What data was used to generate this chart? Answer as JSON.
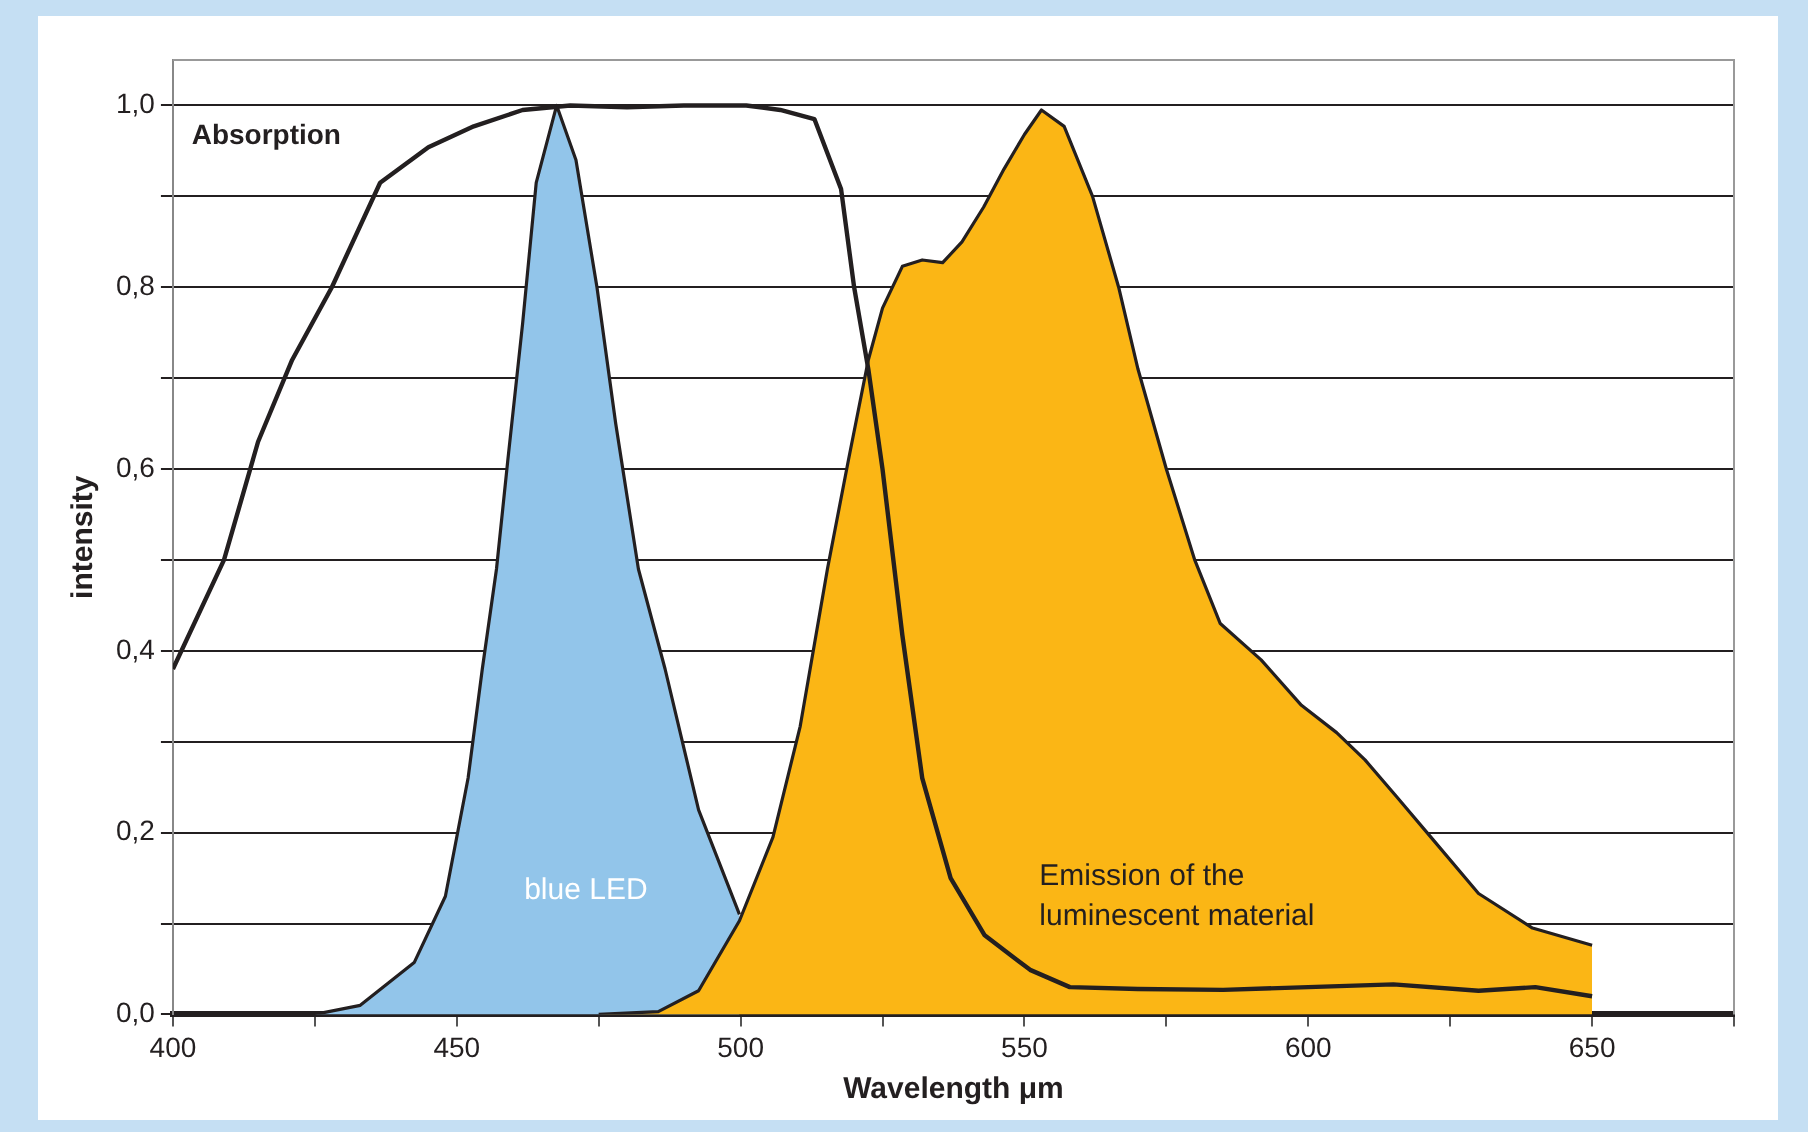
{
  "chart_data": {
    "type": "area",
    "xlabel": "Wavelength μm",
    "ylabel": "intensity",
    "xlim": [
      400,
      675
    ],
    "xticks": [
      400,
      {
        "value": 425,
        "label": null
      },
      450,
      {
        "value": 475,
        "label": null
      },
      500,
      {
        "value": 525,
        "label": null
      },
      550,
      {
        "value": 575,
        "label": null
      },
      600,
      {
        "value": 625,
        "label": null
      },
      650,
      {
        "value": 675,
        "label": null
      }
    ],
    "ylim": [
      0,
      1.05
    ],
    "yticks": [
      {
        "value": 0,
        "label": "0,0"
      },
      {
        "value": 0.1,
        "label": null
      },
      {
        "value": 0.2,
        "label": "0,2"
      },
      {
        "value": 0.3,
        "label": null
      },
      {
        "value": 0.4,
        "label": "0,4"
      },
      {
        "value": 0.5,
        "label": null
      },
      {
        "value": 0.6,
        "label": "0,6"
      },
      {
        "value": 0.7,
        "label": null
      },
      {
        "value": 0.8,
        "label": "0,8"
      },
      {
        "value": 0.9,
        "label": null
      },
      {
        "value": 1.0,
        "label": "1,0"
      }
    ],
    "grid": "y",
    "legend": false,
    "marker": "none",
    "series": [
      {
        "name": "Absorption",
        "type": "line",
        "color": "#231f20",
        "x": [
          400,
          409,
          415,
          421,
          428,
          436.5,
          445,
          453,
          461.6,
          470,
          480,
          490,
          501,
          507,
          513,
          517.7,
          520,
          522.5,
          525,
          528.5,
          532,
          537,
          543,
          551,
          558,
          570,
          585,
          600,
          615,
          630,
          640,
          650
        ],
        "values": [
          0.38,
          0.5,
          0.63,
          0.72,
          0.8,
          0.915,
          0.954,
          0.977,
          0.995,
          1.0,
          0.998,
          1.0,
          1.0,
          0.995,
          0.985,
          0.908,
          0.8,
          0.71,
          0.6,
          0.417,
          0.26,
          0.15,
          0.087,
          0.049,
          0.03,
          0.028,
          0.027,
          0.03,
          0.033,
          0.026,
          0.03,
          0.02
        ]
      },
      {
        "name": "Emission of the luminescent material",
        "color": "#fbb615",
        "x": [
          475,
          485.5,
          492.6,
          499.8,
          505.7,
          510.5,
          515.3,
          519,
          522.5,
          525,
          528.5,
          532,
          535.6,
          539,
          542.8,
          546.4,
          550,
          553,
          557,
          562,
          566.6,
          570,
          575,
          580,
          584.5,
          591.7,
          598.8,
          605,
          610,
          615.5,
          621.6,
          630,
          639.5,
          650
        ],
        "values": [
          0,
          0.003,
          0.026,
          0.103,
          0.195,
          0.317,
          0.49,
          0.61,
          0.72,
          0.777,
          0.823,
          0.83,
          0.827,
          0.85,
          0.888,
          0.93,
          0.968,
          0.995,
          0.977,
          0.9,
          0.8,
          0.71,
          0.6,
          0.5,
          0.43,
          0.39,
          0.34,
          0.31,
          0.28,
          0.24,
          0.195,
          0.133,
          0.095,
          0.076
        ]
      },
      {
        "name": "blue LED",
        "color": "#92c5ea",
        "x": [
          425,
          433,
          442.5,
          448,
          452,
          454.5,
          457,
          459,
          461.6,
          464,
          467.6,
          471,
          474.7,
          478,
          482,
          486.7,
          492.6,
          499.8
        ],
        "values": [
          0,
          0.01,
          0.057,
          0.13,
          0.26,
          0.38,
          0.49,
          0.61,
          0.76,
          0.915,
          1.0,
          0.94,
          0.8,
          0.65,
          0.49,
          0.38,
          0.225,
          0.11
        ]
      }
    ]
  }
}
